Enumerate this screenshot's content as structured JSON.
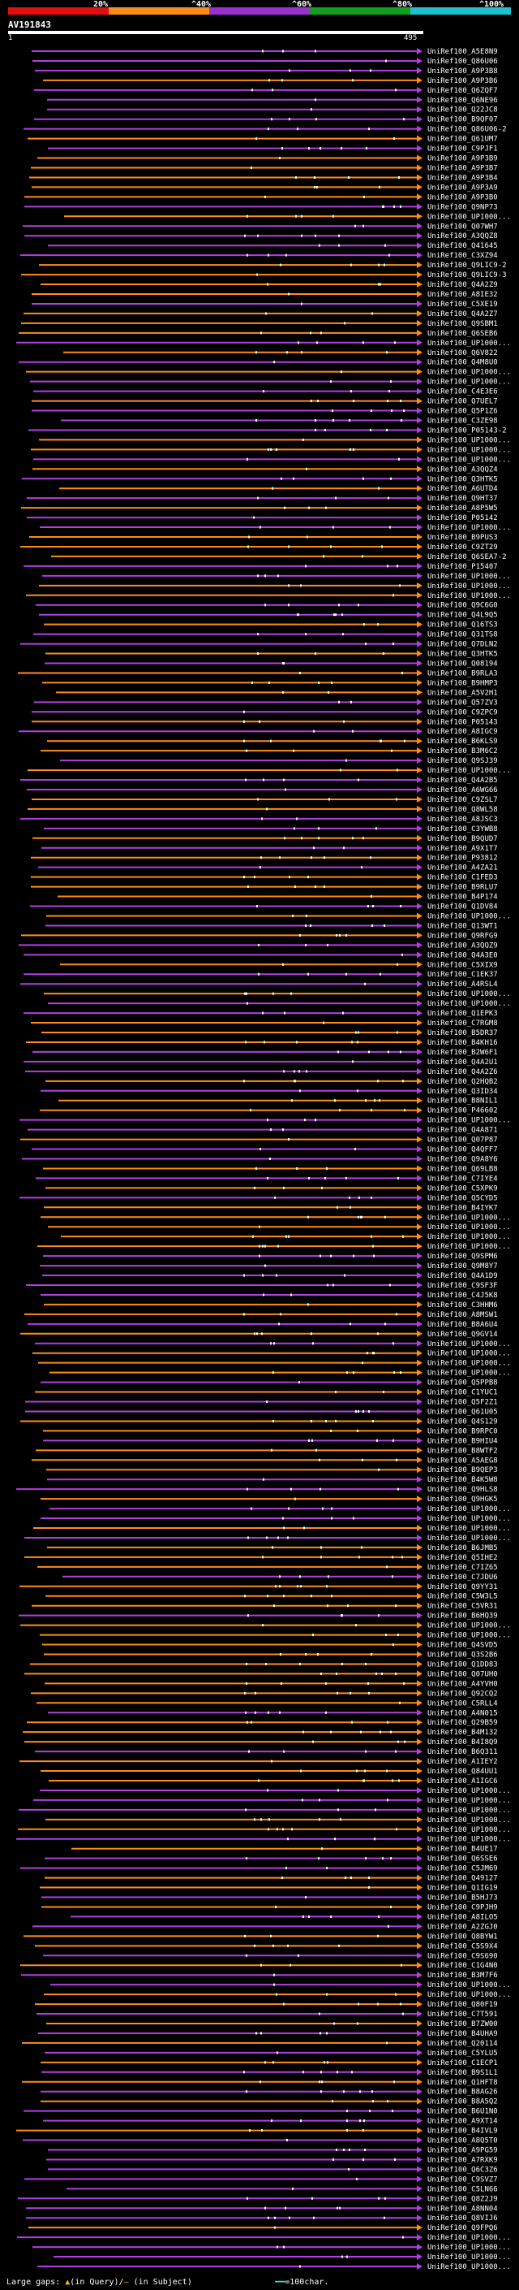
{
  "legend": {
    "ticks": [
      "20%",
      "^40%",
      "^60%",
      "^80%",
      "^100%"
    ],
    "colors": [
      "#e01010",
      "#ff8c1a",
      "#9b30d0",
      "#10a020",
      "#20c0d0"
    ]
  },
  "query": {
    "name": "AV191843",
    "start": "1",
    "end": "495"
  },
  "footer": {
    "prefix": "Large gaps:",
    "query_gap": "(in Query)/",
    "subject_gap": "(in Subject)",
    "scale": "=100char."
  },
  "hit_colors": {
    "purple": "#b040e0",
    "orange": "#ff8c1a",
    "tick": "#ffffff"
  },
  "hits": [
    {
      "label": "UniRef100_A5E8N9",
      "color": "purple"
    },
    {
      "label": "UniRef100_Q86U06",
      "color": "purple"
    },
    {
      "label": "UniRef100_A9P3B8",
      "color": "purple"
    },
    {
      "label": "UniRef100_A9P3B6",
      "color": "orange"
    },
    {
      "label": "UniRef100_Q6ZQF7",
      "color": "purple"
    },
    {
      "label": "UniRef100_Q6NE96",
      "color": "purple"
    },
    {
      "label": "UniRef100_Q22JC8",
      "color": "purple"
    },
    {
      "label": "UniRef100_B9QF07",
      "color": "purple"
    },
    {
      "label": "UniRef100_Q86U06-2",
      "color": "purple"
    },
    {
      "label": "UniRef100_Q61UM7",
      "color": "orange"
    },
    {
      "label": "UniRef100_C9PJF1",
      "color": "purple"
    },
    {
      "label": "UniRef100_A9P3B9",
      "color": "orange"
    },
    {
      "label": "UniRef100_A9P3B7",
      "color": "orange"
    },
    {
      "label": "UniRef100_A9P3B4",
      "color": "orange"
    },
    {
      "label": "UniRef100_A9P3A9",
      "color": "orange"
    },
    {
      "label": "UniRef100_A9P3B0",
      "color": "orange"
    },
    {
      "label": "UniRef100_Q9NP73",
      "color": "purple"
    },
    {
      "label": "UniRef100_UP1000...",
      "color": "orange"
    },
    {
      "label": "UniRef100_Q07WH7",
      "color": "purple"
    },
    {
      "label": "UniRef100_A3QQZ8",
      "color": "purple"
    },
    {
      "label": "UniRef100_Q41645",
      "color": "purple"
    },
    {
      "label": "UniRef100_C3XZ94",
      "color": "purple"
    },
    {
      "label": "UniRef100_Q9LIC9-2",
      "color": "orange"
    },
    {
      "label": "UniRef100_Q9LIC9-3",
      "color": "orange"
    },
    {
      "label": "UniRef100_Q4A2Z9",
      "color": "orange"
    },
    {
      "label": "UniRef100_A8IE32",
      "color": "orange"
    },
    {
      "label": "UniRef100_C5XE19",
      "color": "purple"
    },
    {
      "label": "UniRef100_Q4A2Z7",
      "color": "orange"
    },
    {
      "label": "UniRef100_Q9SBM1",
      "color": "orange"
    },
    {
      "label": "UniRef100_Q6SEB6",
      "color": "orange"
    },
    {
      "label": "UniRef100_UP1000...",
      "color": "purple"
    },
    {
      "label": "UniRef100_Q6V822",
      "color": "orange"
    },
    {
      "label": "UniRef100_Q4M8U0",
      "color": "purple"
    },
    {
      "label": "UniRef100_UP1000...",
      "color": "orange"
    },
    {
      "label": "UniRef100_UP1000...",
      "color": "purple"
    },
    {
      "label": "UniRef100_C4E3E6",
      "color": "purple"
    },
    {
      "label": "UniRef100_Q7UEL7",
      "color": "orange"
    },
    {
      "label": "UniRef100_Q5P1Z6",
      "color": "purple"
    },
    {
      "label": "UniRef100_C3ZE98",
      "color": "purple"
    },
    {
      "label": "UniRef100_P05143-2",
      "color": "purple"
    },
    {
      "label": "UniRef100_UP1000...",
      "color": "orange"
    },
    {
      "label": "UniRef100_UP1000...",
      "color": "orange"
    },
    {
      "label": "UniRef100_UP1000...",
      "color": "purple"
    },
    {
      "label": "UniRef100_A3QQZ4",
      "color": "orange"
    },
    {
      "label": "UniRef100_Q3HTK5",
      "color": "purple"
    },
    {
      "label": "UniRef100_A6UTD4",
      "color": "orange"
    },
    {
      "label": "UniRef100_Q9HT37",
      "color": "purple"
    },
    {
      "label": "UniRef100_A8P5W5",
      "color": "orange"
    },
    {
      "label": "UniRef100_P05142",
      "color": "purple"
    },
    {
      "label": "UniRef100_UP1000...",
      "color": "purple"
    },
    {
      "label": "UniRef100_B9PUS3",
      "color": "orange"
    },
    {
      "label": "UniRef100_C9ZT29",
      "color": "orange"
    },
    {
      "label": "UniRef100_Q6SEA7-2",
      "color": "orange"
    },
    {
      "label": "UniRef100_P15407",
      "color": "purple"
    },
    {
      "label": "UniRef100_UP1000...",
      "color": "purple"
    },
    {
      "label": "UniRef100_UP1000...",
      "color": "orange"
    },
    {
      "label": "UniRef100_UP1000...",
      "color": "orange"
    },
    {
      "label": "UniRef100_Q9C6G0",
      "color": "purple"
    },
    {
      "label": "UniRef100_Q4L9Q5",
      "color": "purple"
    },
    {
      "label": "UniRef100_Q16TS3",
      "color": "orange"
    },
    {
      "label": "UniRef100_Q31TS8",
      "color": "purple"
    },
    {
      "label": "UniRef100_Q7DLN2",
      "color": "purple"
    },
    {
      "label": "UniRef100_Q3HTK5",
      "color": "orange"
    },
    {
      "label": "UniRef100_Q08194",
      "color": "purple"
    },
    {
      "label": "UniRef100_B9RLA3",
      "color": "orange"
    },
    {
      "label": "UniRef100_B9HMP3",
      "color": "orange"
    },
    {
      "label": "UniRef100_A5V2H1",
      "color": "orange"
    },
    {
      "label": "UniRef100_Q57ZV3",
      "color": "purple"
    },
    {
      "label": "UniRef100_C9ZPC9",
      "color": "purple"
    },
    {
      "label": "UniRef100_P05143",
      "color": "orange"
    },
    {
      "label": "UniRef100_A8IGC9",
      "color": "purple"
    },
    {
      "label": "UniRef100_B6KLS9",
      "color": "orange"
    },
    {
      "label": "UniRef100_B3M6C2",
      "color": "orange"
    },
    {
      "label": "UniRef100_Q9SJ39",
      "color": "purple"
    },
    {
      "label": "UniRef100_UP1000...",
      "color": "orange"
    },
    {
      "label": "UniRef100_Q4A2B5",
      "color": "purple"
    },
    {
      "label": "UniRef100_A6WG66",
      "color": "purple"
    },
    {
      "label": "UniRef100_C9ZSL7",
      "color": "orange"
    },
    {
      "label": "UniRef100_Q8WL58",
      "color": "orange"
    },
    {
      "label": "UniRef100_A8JSC3",
      "color": "purple"
    },
    {
      "label": "UniRef100_C3YWB8",
      "color": "purple"
    },
    {
      "label": "UniRef100_B9QUD7",
      "color": "orange"
    },
    {
      "label": "UniRef100_A9X1T7",
      "color": "purple"
    },
    {
      "label": "UniRef100_P93812",
      "color": "orange"
    },
    {
      "label": "UniRef100_A4ZA21",
      "color": "purple"
    },
    {
      "label": "UniRef100_C1FED3",
      "color": "orange"
    },
    {
      "label": "UniRef100_B9RLU7",
      "color": "orange"
    },
    {
      "label": "UniRef100_B4P174",
      "color": "orange"
    },
    {
      "label": "UniRef100_Q1DV84",
      "color": "purple"
    },
    {
      "label": "UniRef100_UP1000...",
      "color": "orange"
    },
    {
      "label": "UniRef100_Q13WT1",
      "color": "purple"
    },
    {
      "label": "UniRef100_Q9RFG9",
      "color": "orange"
    },
    {
      "label": "UniRef100_A3QQZ9",
      "color": "purple"
    },
    {
      "label": "UniRef100_Q4A3E0",
      "color": "purple"
    },
    {
      "label": "UniRef100_C5XIX9",
      "color": "orange"
    },
    {
      "label": "UniRef100_C1EK37",
      "color": "purple"
    },
    {
      "label": "UniRef100_A4RSL4",
      "color": "purple"
    },
    {
      "label": "UniRef100_UP1000...",
      "color": "orange"
    },
    {
      "label": "UniRef100_UP1000...",
      "color": "purple"
    },
    {
      "label": "UniRef100_Q1EPK3",
      "color": "purple"
    },
    {
      "label": "UniRef100_C7RGM8",
      "color": "orange"
    },
    {
      "label": "UniRef100_B5DR37",
      "color": "orange"
    },
    {
      "label": "UniRef100_B4KH16",
      "color": "orange"
    },
    {
      "label": "UniRef100_B2W6F1",
      "color": "purple"
    },
    {
      "label": "UniRef100_Q4A2U1",
      "color": "purple"
    },
    {
      "label": "UniRef100_Q4A2Z6",
      "color": "purple"
    },
    {
      "label": "UniRef100_Q2HQB2",
      "color": "orange"
    },
    {
      "label": "UniRef100_Q3ID34",
      "color": "purple"
    },
    {
      "label": "UniRef100_B8NIL1",
      "color": "orange"
    },
    {
      "label": "UniRef100_P46602",
      "color": "orange"
    },
    {
      "label": "UniRef100_UP1000...",
      "color": "purple"
    },
    {
      "label": "UniRef100_Q4A871",
      "color": "purple"
    },
    {
      "label": "UniRef100_Q07P87",
      "color": "orange"
    },
    {
      "label": "UniRef100_Q4QFF7",
      "color": "purple"
    },
    {
      "label": "UniRef100_Q9A8Y6",
      "color": "purple"
    },
    {
      "label": "UniRef100_Q69LB8",
      "color": "orange"
    },
    {
      "label": "UniRef100_C7IYE4",
      "color": "purple"
    },
    {
      "label": "UniRef100_C5XPK9",
      "color": "orange"
    },
    {
      "label": "UniRef100_Q5CYD5",
      "color": "purple"
    },
    {
      "label": "UniRef100_B4IYK7",
      "color": "orange"
    },
    {
      "label": "UniRef100_UP1000...",
      "color": "orange"
    },
    {
      "label": "UniRef100_UP1000...",
      "color": "orange"
    },
    {
      "label": "UniRef100_UP1000...",
      "color": "orange"
    },
    {
      "label": "UniRef100_UP1000...",
      "color": "orange"
    },
    {
      "label": "UniRef100_Q9SPM6",
      "color": "purple"
    },
    {
      "label": "UniRef100_Q9M8Y7",
      "color": "purple"
    },
    {
      "label": "UniRef100_Q4A1D9",
      "color": "purple"
    },
    {
      "label": "UniRef100_C9SF3F",
      "color": "purple"
    },
    {
      "label": "UniRef100_C4J5K8",
      "color": "purple"
    },
    {
      "label": "UniRef100_C3HHM6",
      "color": "orange"
    },
    {
      "label": "UniRef100_A8MSW1",
      "color": "orange"
    },
    {
      "label": "UniRef100_B8A6U4",
      "color": "purple"
    },
    {
      "label": "UniRef100_Q9GV14",
      "color": "orange"
    },
    {
      "label": "UniRef100_UP1000...",
      "color": "purple"
    },
    {
      "label": "UniRef100_UP1000...",
      "color": "orange"
    },
    {
      "label": "UniRef100_UP1000...",
      "color": "orange"
    },
    {
      "label": "UniRef100_UP1000...",
      "color": "orange"
    },
    {
      "label": "UniRef100_Q5PPB8",
      "color": "purple"
    },
    {
      "label": "UniRef100_C1YUC1",
      "color": "orange"
    },
    {
      "label": "UniRef100_Q5F2Z1",
      "color": "purple"
    },
    {
      "label": "UniRef100_Q61U05",
      "color": "purple"
    },
    {
      "label": "UniRef100_Q4S129",
      "color": "orange"
    },
    {
      "label": "UniRef100_B9RPC0",
      "color": "orange"
    },
    {
      "label": "UniRef100_B9HIU4",
      "color": "purple"
    },
    {
      "label": "UniRef100_B8WTF2",
      "color": "orange"
    },
    {
      "label": "UniRef100_A5AEG8",
      "color": "orange"
    },
    {
      "label": "UniRef100_B9QEP3",
      "color": "orange"
    },
    {
      "label": "UniRef100_B4K5W8",
      "color": "purple"
    },
    {
      "label": "UniRef100_Q9HLS8",
      "color": "purple"
    },
    {
      "label": "UniRef100_Q9HGK5",
      "color": "orange"
    },
    {
      "label": "UniRef100_UP1000...",
      "color": "purple"
    },
    {
      "label": "UniRef100_UP1000...",
      "color": "purple"
    },
    {
      "label": "UniRef100_UP1000...",
      "color": "orange"
    },
    {
      "label": "UniRef100_UP1000...",
      "color": "purple"
    },
    {
      "label": "UniRef100_B6JMB5",
      "color": "orange"
    },
    {
      "label": "UniRef100_Q5IHE2",
      "color": "orange"
    },
    {
      "label": "UniRef100_C7IZ65",
      "color": "orange"
    },
    {
      "label": "UniRef100_C7JDU6",
      "color": "purple"
    },
    {
      "label": "UniRef100_Q9YY31",
      "color": "orange"
    },
    {
      "label": "UniRef100_C5W3L5",
      "color": "orange"
    },
    {
      "label": "UniRef100_C5VR31",
      "color": "orange"
    },
    {
      "label": "UniRef100_B6HQ39",
      "color": "purple"
    },
    {
      "label": "UniRef100_UP1000...",
      "color": "orange"
    },
    {
      "label": "UniRef100_UP1000...",
      "color": "orange"
    },
    {
      "label": "UniRef100_Q4SVD5",
      "color": "orange"
    },
    {
      "label": "UniRef100_Q3S2B6",
      "color": "orange"
    },
    {
      "label": "UniRef100_Q1DD83",
      "color": "orange"
    },
    {
      "label": "UniRef100_Q07UH0",
      "color": "orange"
    },
    {
      "label": "UniRef100_A4YVH0",
      "color": "orange"
    },
    {
      "label": "UniRef100_Q92CQ2",
      "color": "orange"
    },
    {
      "label": "UniRef100_C5RLL4",
      "color": "orange"
    },
    {
      "label": "UniRef100_A4N015",
      "color": "purple"
    },
    {
      "label": "UniRef100_Q29B59",
      "color": "orange"
    },
    {
      "label": "UniRef100_B4M132",
      "color": "orange"
    },
    {
      "label": "UniRef100_B4I8Q9",
      "color": "orange"
    },
    {
      "label": "UniRef100_B6Q311",
      "color": "purple"
    },
    {
      "label": "UniRef100_A1IEY2",
      "color": "orange"
    },
    {
      "label": "UniRef100_Q84UU1",
      "color": "orange"
    },
    {
      "label": "UniRef100_A1IGC6",
      "color": "orange"
    },
    {
      "label": "UniRef100_UP1000...",
      "color": "purple"
    },
    {
      "label": "UniRef100_UP1000...",
      "color": "purple"
    },
    {
      "label": "UniRef100_UP1000...",
      "color": "purple"
    },
    {
      "label": "UniRef100_UP1000...",
      "color": "orange"
    },
    {
      "label": "UniRef100_UP1000...",
      "color": "orange"
    },
    {
      "label": "UniRef100_UP1000...",
      "color": "purple"
    },
    {
      "label": "UniRef100_B4UE17",
      "color": "orange"
    },
    {
      "label": "UniRef100_Q6SSE6",
      "color": "purple"
    },
    {
      "label": "UniRef100_C5JM69",
      "color": "purple"
    },
    {
      "label": "UniRef100_Q49127",
      "color": "orange"
    },
    {
      "label": "UniRef100_Q1IG19",
      "color": "orange"
    },
    {
      "label": "UniRef100_B5HJ73",
      "color": "purple"
    },
    {
      "label": "UniRef100_C9PJH9",
      "color": "orange"
    },
    {
      "label": "UniRef100_A8ILO5",
      "color": "purple"
    },
    {
      "label": "UniRef100_A2ZGJ0",
      "color": "purple"
    },
    {
      "label": "UniRef100_Q8BYW1",
      "color": "orange"
    },
    {
      "label": "UniRef100_C5S9X4",
      "color": "orange"
    },
    {
      "label": "UniRef100_C9S690",
      "color": "purple"
    },
    {
      "label": "UniRef100_C1G4N0",
      "color": "orange"
    },
    {
      "label": "UniRef100_B3M7F6",
      "color": "purple"
    },
    {
      "label": "UniRef100_UP1000...",
      "color": "purple"
    },
    {
      "label": "UniRef100_UP1000...",
      "color": "orange"
    },
    {
      "label": "UniRef100_Q80F19",
      "color": "orange"
    },
    {
      "label": "UniRef100_C7T591",
      "color": "purple"
    },
    {
      "label": "UniRef100_B7ZW00",
      "color": "orange"
    },
    {
      "label": "UniRef100_B4UHA9",
      "color": "purple"
    },
    {
      "label": "UniRef100_Q20114",
      "color": "orange"
    },
    {
      "label": "UniRef100_C5YLU5",
      "color": "purple"
    },
    {
      "label": "UniRef100_C1ECP1",
      "color": "orange"
    },
    {
      "label": "UniRef100_B9S1L1",
      "color": "purple"
    },
    {
      "label": "UniRef100_Q1HFT8",
      "color": "orange"
    },
    {
      "label": "UniRef100_B8AG26",
      "color": "purple"
    },
    {
      "label": "UniRef100_B8A5Q2",
      "color": "orange"
    },
    {
      "label": "UniRef100_B6U1N0",
      "color": "purple"
    },
    {
      "label": "UniRef100_A9XT14",
      "color": "purple"
    },
    {
      "label": "UniRef100_B4IVL9",
      "color": "orange"
    },
    {
      "label": "UniRef100_A8Q5T0",
      "color": "purple"
    },
    {
      "label": "UniRef100_A9PG59",
      "color": "purple"
    },
    {
      "label": "UniRef100_A7RXK9",
      "color": "purple"
    },
    {
      "label": "UniRef100_Q6C3Z6",
      "color": "purple"
    },
    {
      "label": "UniRef100_C9SVZ7",
      "color": "purple"
    },
    {
      "label": "UniRef100_C5LN66",
      "color": "purple"
    },
    {
      "label": "UniRef100_Q8Z2J9",
      "color": "purple"
    },
    {
      "label": "UniRef100_A8NN04",
      "color": "purple"
    },
    {
      "label": "UniRef100_Q8VIJ6",
      "color": "purple"
    },
    {
      "label": "UniRef100_Q9FPQ6",
      "color": "orange"
    },
    {
      "label": "UniRef100_UP1000...",
      "color": "purple"
    },
    {
      "label": "UniRef100_UP1000...",
      "color": "purple"
    },
    {
      "label": "UniRef100_UP1000...",
      "color": "purple"
    },
    {
      "label": "UniRef100_UP1000...",
      "color": "purple"
    }
  ]
}
